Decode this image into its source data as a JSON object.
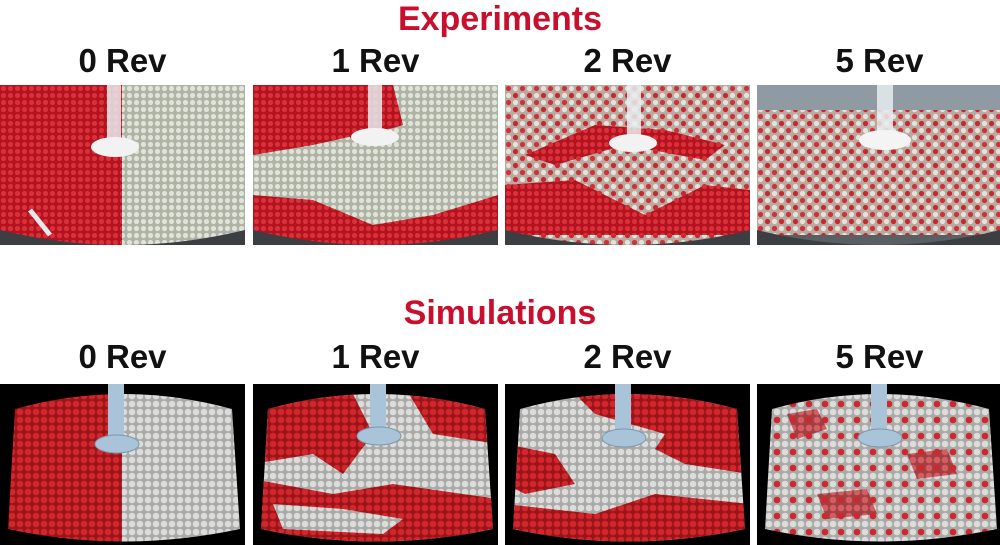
{
  "experiments": {
    "title": "Experiments",
    "panels": [
      {
        "label": "0 Rev",
        "mixing": "segregated"
      },
      {
        "label": "1 Rev",
        "mixing": "partially mixed"
      },
      {
        "label": "2 Rev",
        "mixing": "partially mixed"
      },
      {
        "label": "5 Rev",
        "mixing": "well mixed"
      }
    ]
  },
  "simulations": {
    "title": "Simulations",
    "panels": [
      {
        "label": "0 Rev",
        "mixing": "segregated"
      },
      {
        "label": "1 Rev",
        "mixing": "partially mixed"
      },
      {
        "label": "2 Rev",
        "mixing": "partially mixed"
      },
      {
        "label": "5 Rev",
        "mixing": "well mixed"
      }
    ]
  },
  "colors": {
    "title": "#c8102e",
    "red_particle": "#c8202a",
    "white_particle": "#d8d8d6",
    "shaft": "#a9c4d8",
    "background_sim": "#000000"
  }
}
